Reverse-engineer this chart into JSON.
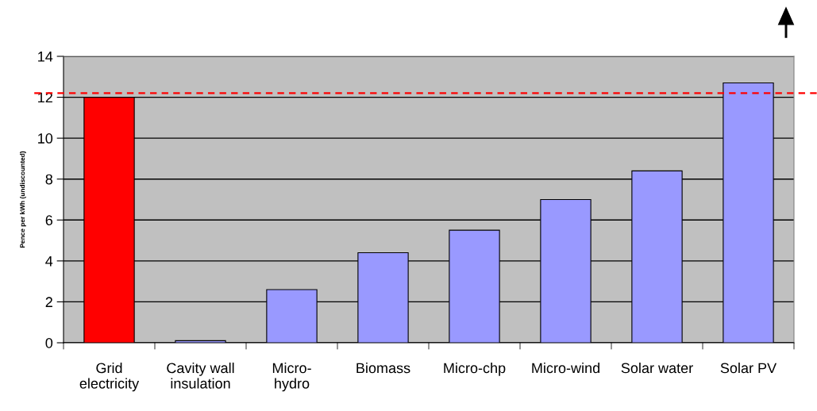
{
  "chart_data": {
    "type": "bar",
    "ylabel": "Pence per kWh (undiscounted)",
    "categories": [
      "Grid\nelectricity",
      "Cavity wall\ninsulation",
      "Micro-\nhydro",
      "Biomass",
      "Micro-chp",
      "Micro-wind",
      "Solar water",
      "Solar PV"
    ],
    "values": [
      12,
      0.1,
      2.6,
      4.4,
      5.5,
      7.0,
      8.4,
      12.7
    ],
    "colors": [
      "#ff0000",
      "#9999ff",
      "#9999ff",
      "#9999ff",
      "#9999ff",
      "#9999ff",
      "#9999ff",
      "#9999ff"
    ],
    "ylim": [
      0,
      14
    ],
    "yticks": [
      0,
      2,
      4,
      6,
      8,
      10,
      12,
      14
    ],
    "grid": "y",
    "ref_lines": [
      {
        "axis": "y",
        "value": 12.2,
        "color": "#ff0000",
        "line_style": "dashed"
      }
    ]
  }
}
